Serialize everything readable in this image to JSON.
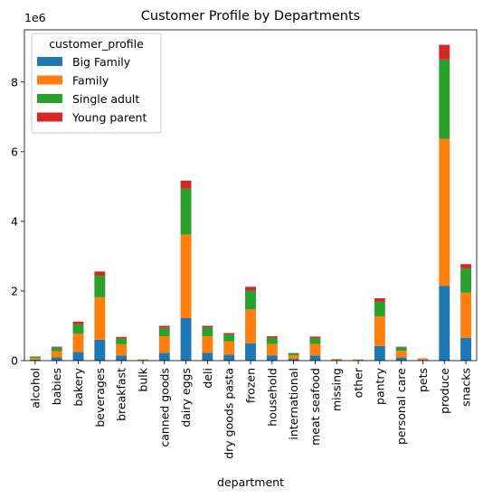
{
  "chart_data": {
    "type": "bar",
    "stacked": true,
    "title": "Customer Profile by Departments",
    "xlabel": "department",
    "ylabel": "",
    "y_scale_label": "1e6",
    "ylim": [
      0,
      9.5
    ],
    "yticks": [
      0,
      2,
      4,
      6,
      8
    ],
    "grid": false,
    "legend": {
      "title": "customer_profile",
      "placement": "top-left"
    },
    "categories": [
      "alcohol",
      "babies",
      "bakery",
      "beverages",
      "breakfast",
      "bulk",
      "canned goods",
      "dairy eggs",
      "deli",
      "dry goods pasta",
      "frozen",
      "household",
      "international",
      "meat seafood",
      "missing",
      "other",
      "pantry",
      "personal care",
      "pets",
      "produce",
      "snacks"
    ],
    "series": [
      {
        "name": "Big Family",
        "color": "#1f77b4",
        "values": [
          0.03,
          0.09,
          0.25,
          0.6,
          0.15,
          0.01,
          0.22,
          1.22,
          0.22,
          0.17,
          0.5,
          0.15,
          0.05,
          0.15,
          0.01,
          0.01,
          0.42,
          0.09,
          0.02,
          2.15,
          0.65
        ]
      },
      {
        "name": "Family",
        "color": "#ff7f0e",
        "values": [
          0.04,
          0.18,
          0.52,
          1.22,
          0.32,
          0.01,
          0.48,
          2.4,
          0.48,
          0.38,
          0.97,
          0.33,
          0.1,
          0.33,
          0.02,
          0.01,
          0.85,
          0.19,
          0.03,
          4.22,
          1.3
        ]
      },
      {
        "name": "Single adult",
        "color": "#2ca02c",
        "values": [
          0.04,
          0.1,
          0.28,
          0.62,
          0.17,
          0.01,
          0.24,
          1.32,
          0.25,
          0.2,
          0.54,
          0.18,
          0.06,
          0.17,
          0.01,
          0.01,
          0.42,
          0.1,
          0.01,
          2.28,
          0.7
        ]
      },
      {
        "name": "Young parent",
        "color": "#d62728",
        "values": [
          0.01,
          0.03,
          0.07,
          0.12,
          0.04,
          0.005,
          0.06,
          0.23,
          0.05,
          0.04,
          0.11,
          0.04,
          0.01,
          0.04,
          0.005,
          0.005,
          0.1,
          0.02,
          0.005,
          0.42,
          0.12
        ]
      }
    ]
  }
}
